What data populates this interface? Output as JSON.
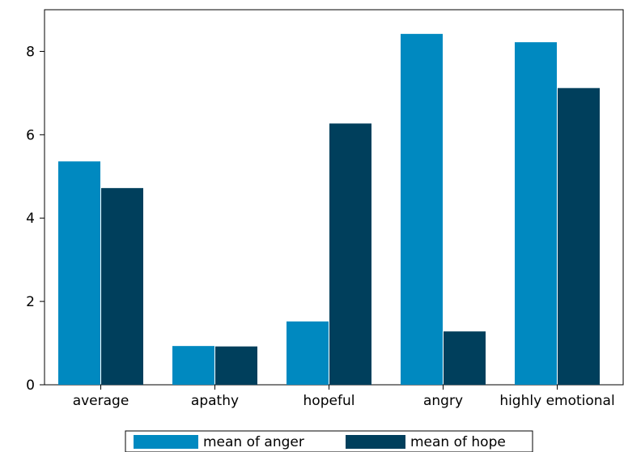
{
  "chart_data": {
    "type": "bar",
    "categories": [
      "average",
      "apathy",
      "hopeful",
      "angry",
      "highly emotional"
    ],
    "series": [
      {
        "name": "mean of anger",
        "values": [
          5.36,
          0.93,
          1.52,
          8.42,
          8.22
        ],
        "color": "#0089c0"
      },
      {
        "name": "mean of hope",
        "values": [
          4.72,
          0.92,
          6.27,
          1.28,
          7.12
        ],
        "color": "#003f5c"
      }
    ],
    "title": "",
    "xlabel": "",
    "ylabel": "",
    "ylim": [
      0,
      9
    ],
    "yticks": [
      0,
      2,
      4,
      6,
      8
    ],
    "grid": false,
    "legend_position": "bottom"
  }
}
